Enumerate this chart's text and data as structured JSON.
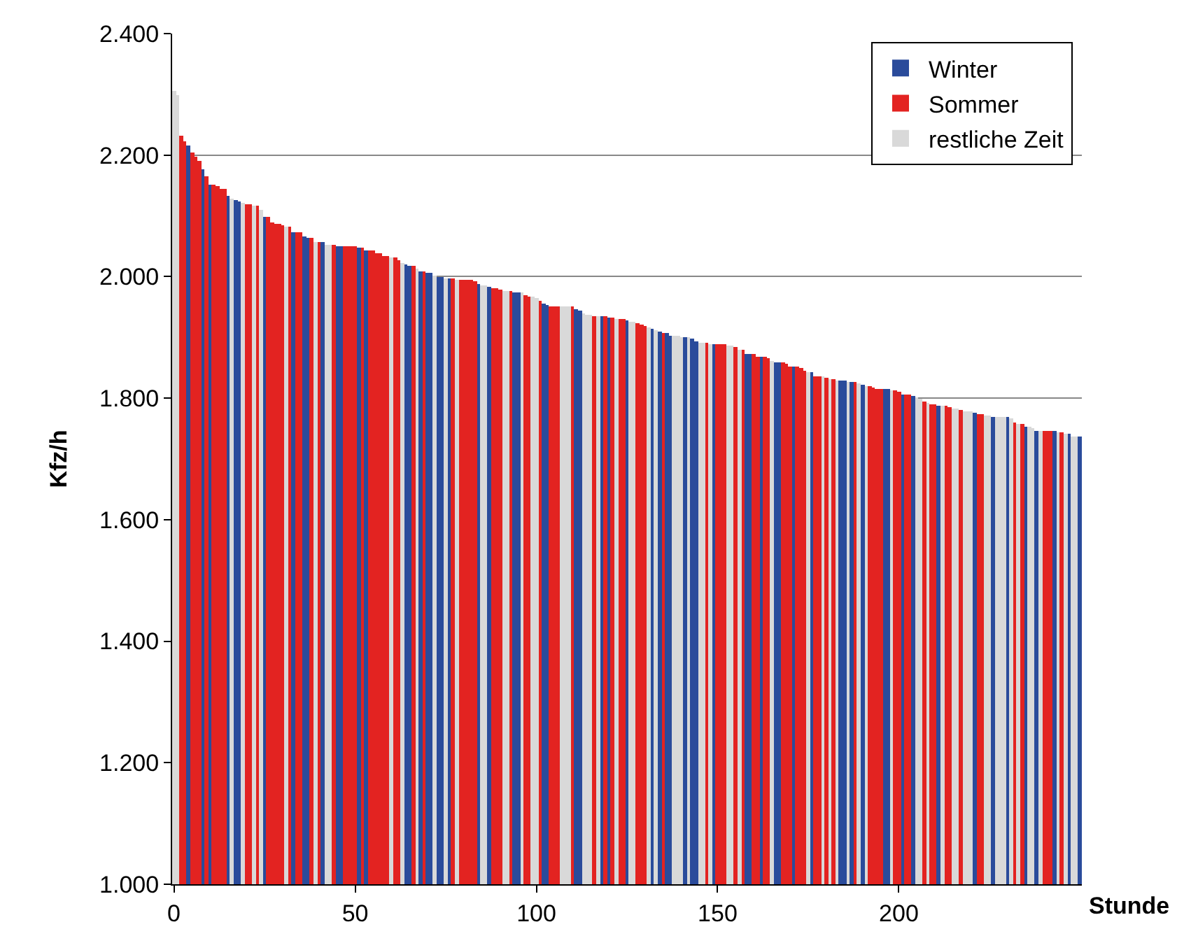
{
  "chart_data": {
    "type": "bar",
    "xlabel": "Stunde",
    "ylabel": "Kfz/h",
    "xlim": [
      -0.5,
      250.5
    ],
    "xticks": [
      0,
      50,
      100,
      150,
      200
    ],
    "ylim": [
      1000,
      2400
    ],
    "yticks": [
      {
        "value": 1000,
        "label": "1.000"
      },
      {
        "value": 1200,
        "label": "1.200"
      },
      {
        "value": 1400,
        "label": "1.400"
      },
      {
        "value": 1600,
        "label": "1.600"
      },
      {
        "value": 1800,
        "label": "1.800"
      },
      {
        "value": 2000,
        "label": "2.000"
      },
      {
        "value": 2200,
        "label": "2.200"
      },
      {
        "value": 2400,
        "label": "2.400"
      }
    ],
    "grid": "y",
    "legend": "top right",
    "series": [
      {
        "name": "Winter",
        "color": "#2a4b9b",
        "x": [
          4,
          8,
          10,
          15,
          17,
          18,
          25,
          33,
          36,
          37,
          41,
          45,
          46,
          51,
          53,
          64,
          65,
          68,
          70,
          71,
          73,
          74,
          76,
          84,
          87,
          94,
          95,
          102,
          103,
          111,
          112,
          118,
          120,
          125,
          132,
          134,
          136,
          137,
          141,
          143,
          144,
          149,
          158,
          159,
          162,
          166,
          167,
          171,
          176,
          184,
          185,
          187,
          190,
          196,
          197,
          201,
          204,
          211,
          221,
          226,
          230,
          235,
          238,
          243,
          247,
          250
        ],
        "values": [
          2215,
          2177,
          2152,
          2132,
          2126,
          2123,
          2099,
          2074,
          2065,
          2063,
          2056,
          2051,
          2051,
          2047,
          2042,
          2020,
          2018,
          2008,
          2006,
          2006,
          2000,
          2000,
          1997,
          1988,
          1984,
          1975,
          1975,
          1956,
          1954,
          1947,
          1945,
          1936,
          1932,
          1927,
          1914,
          1910,
          1907,
          1903,
          1900,
          1898,
          1894,
          1889,
          1873,
          1873,
          1867,
          1860,
          1860,
          1851,
          1842,
          1828,
          1828,
          1826,
          1822,
          1815,
          1815,
          1806,
          1804,
          1788,
          1777,
          1770,
          1768,
          1754,
          1747,
          1745,
          1741,
          1736
        ]
      },
      {
        "name": "Sommer",
        "color": "#e32321",
        "x": [
          2,
          3,
          5,
          6,
          7,
          9,
          11,
          12,
          13,
          14,
          20,
          21,
          23,
          26,
          27,
          28,
          29,
          30,
          32,
          34,
          35,
          38,
          40,
          44,
          47,
          48,
          49,
          50,
          52,
          54,
          55,
          56,
          57,
          58,
          59,
          61,
          62,
          66,
          69,
          77,
          79,
          80,
          81,
          82,
          83,
          88,
          89,
          90,
          93,
          97,
          98,
          101,
          104,
          105,
          106,
          110,
          116,
          119,
          121,
          123,
          124,
          128,
          129,
          130,
          135,
          147,
          150,
          151,
          152,
          155,
          157,
          160,
          161,
          163,
          164,
          168,
          169,
          170,
          172,
          173,
          174,
          177,
          178,
          180,
          182,
          188,
          192,
          193,
          194,
          195,
          199,
          200,
          202,
          203,
          207,
          209,
          210,
          213,
          214,
          217,
          222,
          223,
          232,
          234,
          240,
          241,
          242,
          245
        ],
        "values": [
          2231,
          2223,
          2204,
          2197,
          2191,
          2164,
          2152,
          2148,
          2144,
          2144,
          2119,
          2119,
          2117,
          2099,
          2090,
          2087,
          2087,
          2085,
          2083,
          2072,
          2072,
          2063,
          2058,
          2053,
          2049,
          2049,
          2049,
          2049,
          2047,
          2042,
          2042,
          2038,
          2038,
          2035,
          2033,
          2031,
          2026,
          2018,
          2008,
          1997,
          1995,
          1995,
          1995,
          1995,
          1993,
          1981,
          1980,
          1979,
          1977,
          1970,
          1968,
          1961,
          1952,
          1952,
          1952,
          1950,
          1936,
          1934,
          1932,
          1930,
          1930,
          1924,
          1922,
          1918,
          1907,
          1891,
          1889,
          1889,
          1889,
          1885,
          1880,
          1873,
          1869,
          1867,
          1865,
          1858,
          1856,
          1853,
          1851,
          1849,
          1844,
          1835,
          1835,
          1833,
          1831,
          1826,
          1820,
          1817,
          1815,
          1815,
          1813,
          1811,
          1806,
          1806,
          1795,
          1790,
          1790,
          1788,
          1786,
          1781,
          1774,
          1774,
          1761,
          1757,
          1745,
          1745,
          1745,
          1743
        ]
      },
      {
        "name": "restliche Zeit",
        "color": "#d9d9d9",
        "x": [
          0,
          1,
          16,
          19,
          22,
          24,
          31,
          39,
          42,
          43,
          60,
          63,
          67,
          72,
          75,
          78,
          85,
          86,
          91,
          92,
          96,
          99,
          100,
          107,
          108,
          109,
          113,
          114,
          115,
          117,
          122,
          126,
          127,
          131,
          133,
          138,
          139,
          140,
          142,
          145,
          146,
          148,
          153,
          154,
          156,
          165,
          175,
          179,
          181,
          183,
          186,
          189,
          191,
          198,
          205,
          206,
          208,
          212,
          215,
          216,
          218,
          219,
          220,
          224,
          225,
          227,
          228,
          229,
          231,
          233,
          236,
          237,
          239,
          244,
          246,
          248,
          249
        ],
        "values": [
          2306,
          2299,
          2128,
          2121,
          2117,
          2110,
          2083,
          2058,
          2053,
          2053,
          2031,
          2022,
          2013,
          2002,
          1997,
          1995,
          1986,
          1986,
          1977,
          1977,
          1973,
          1966,
          1964,
          1950,
          1950,
          1950,
          1940,
          1938,
          1937,
          1936,
          1930,
          1925,
          1925,
          1916,
          1912,
          1902,
          1902,
          1901,
          1900,
          1891,
          1891,
          1889,
          1887,
          1886,
          1880,
          1862,
          1842,
          1835,
          1831,
          1828,
          1826,
          1824,
          1820,
          1813,
          1801,
          1798,
          1793,
          1788,
          1784,
          1784,
          1779,
          1779,
          1779,
          1772,
          1772,
          1768,
          1768,
          1768,
          1766,
          1757,
          1752,
          1750,
          1747,
          1743,
          1741,
          1738,
          1736
        ]
      }
    ]
  }
}
